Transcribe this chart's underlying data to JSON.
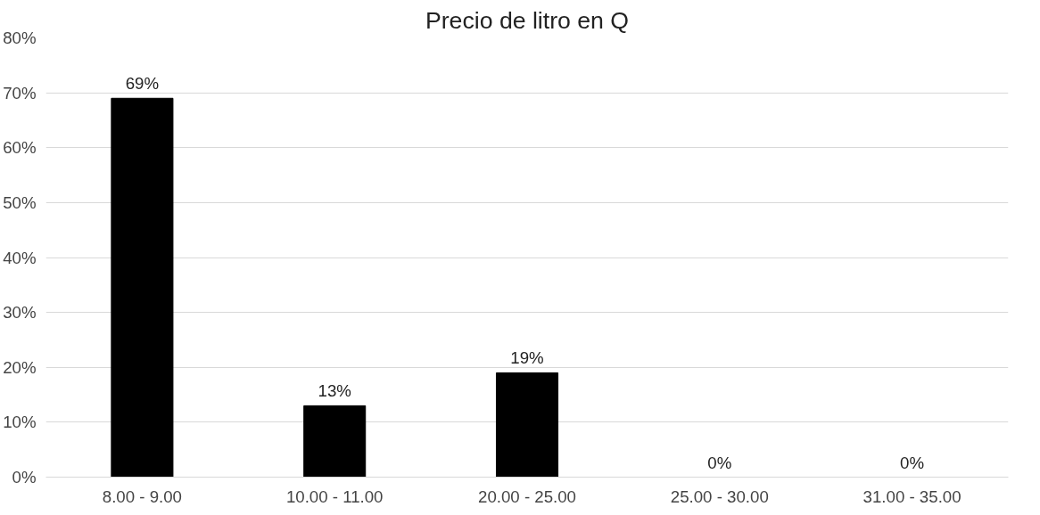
{
  "chart_data": {
    "type": "bar",
    "title": "Precio de litro en Q",
    "categories": [
      "8.00 - 9.00",
      "10.00 - 11.00",
      "20.00 - 25.00",
      "25.00 - 30.00",
      "31.00 - 35.00"
    ],
    "values": [
      69,
      13,
      19,
      0,
      0
    ],
    "value_labels": [
      "69%",
      "13%",
      "19%",
      "0%",
      "0%"
    ],
    "color": "#000000",
    "ylim": [
      0,
      80
    ],
    "yticks": [
      {
        "value": 0,
        "label": "0%"
      },
      {
        "value": 10,
        "label": "10%"
      },
      {
        "value": 20,
        "label": "20%"
      },
      {
        "value": 30,
        "label": "30%"
      },
      {
        "value": 40,
        "label": "40%"
      },
      {
        "value": 50,
        "label": "50%"
      },
      {
        "value": 60,
        "label": "60%"
      },
      {
        "value": 70,
        "label": "70%"
      },
      {
        "value": 80,
        "label": "80%"
      }
    ],
    "grid": "y"
  }
}
